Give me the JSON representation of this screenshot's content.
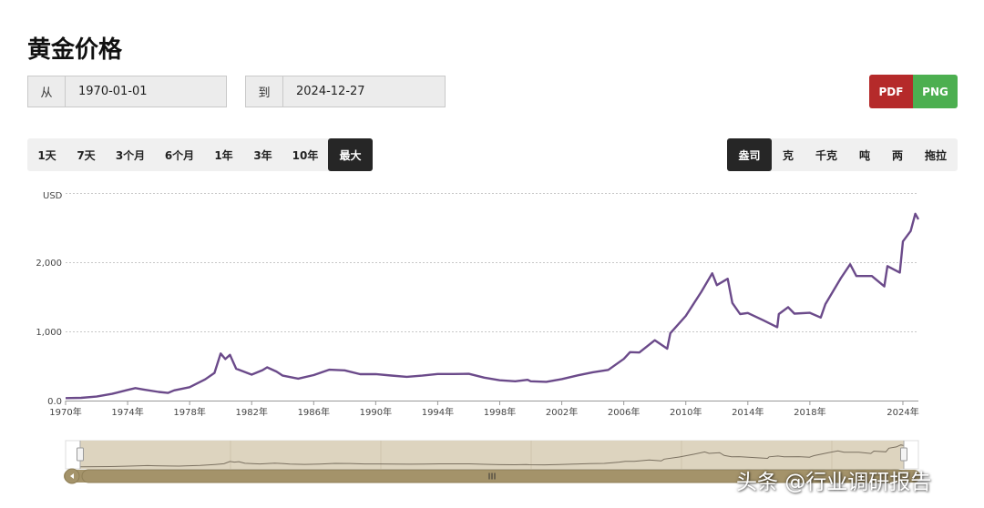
{
  "page_title": "黄金价格",
  "date_range": {
    "from_label": "从",
    "from_value": "1970-01-01",
    "to_label": "到",
    "to_value": "2024-12-27"
  },
  "export": {
    "pdf_label": "PDF",
    "png_label": "PNG",
    "pdf_color": "#b52a2a",
    "png_color": "#4caf50"
  },
  "range_buttons": [
    {
      "label": "1天",
      "active": false
    },
    {
      "label": "7天",
      "active": false
    },
    {
      "label": "3个月",
      "active": false
    },
    {
      "label": "6个月",
      "active": false
    },
    {
      "label": "1年",
      "active": false
    },
    {
      "label": "3年",
      "active": false
    },
    {
      "label": "10年",
      "active": false
    },
    {
      "label": "最大",
      "active": true
    }
  ],
  "unit_buttons": [
    {
      "label": "盎司",
      "active": true
    },
    {
      "label": "克",
      "active": false
    },
    {
      "label": "千克",
      "active": false
    },
    {
      "label": "吨",
      "active": false
    },
    {
      "label": "两",
      "active": false
    },
    {
      "label": "拖拉",
      "active": false
    }
  ],
  "watermark": "头条 @行业调研报告",
  "chart_data": {
    "type": "line",
    "title": "",
    "xlabel": "",
    "ylabel": "USD",
    "ylim": [
      0,
      3000
    ],
    "xlim": [
      1970,
      2025
    ],
    "y_ticks": [
      {
        "value": 0,
        "label": "0.0"
      },
      {
        "value": 1000,
        "label": "1,000"
      },
      {
        "value": 2000,
        "label": "2,000"
      }
    ],
    "x_ticks": [
      {
        "value": 1970,
        "label": "1970年"
      },
      {
        "value": 1974,
        "label": "1974年"
      },
      {
        "value": 1978,
        "label": "1978年"
      },
      {
        "value": 1982,
        "label": "1982年"
      },
      {
        "value": 1986,
        "label": "1986年"
      },
      {
        "value": 1990,
        "label": "1990年"
      },
      {
        "value": 1994,
        "label": "1994年"
      },
      {
        "value": 1998,
        "label": "1998年"
      },
      {
        "value": 2002,
        "label": "2002年"
      },
      {
        "value": 2006,
        "label": "2006年"
      },
      {
        "value": 2010,
        "label": "2010年"
      },
      {
        "value": 2014,
        "label": "2014年"
      },
      {
        "value": 2018,
        "label": "2018年"
      },
      {
        "value": 2024,
        "label": "2024年"
      }
    ],
    "grid": true,
    "line_color": "#6b4a8a",
    "navigator": true,
    "series": [
      {
        "points": [
          [
            1970,
            35
          ],
          [
            1971,
            40
          ],
          [
            1972,
            58
          ],
          [
            1973,
            97
          ],
          [
            1974,
            154
          ],
          [
            1974.5,
            180
          ],
          [
            1975,
            160
          ],
          [
            1976,
            125
          ],
          [
            1976.6,
            110
          ],
          [
            1977,
            148
          ],
          [
            1978,
            193
          ],
          [
            1979,
            306
          ],
          [
            1979.6,
            400
          ],
          [
            1980,
            680
          ],
          [
            1980.3,
            600
          ],
          [
            1980.6,
            660
          ],
          [
            1981,
            460
          ],
          [
            1982,
            375
          ],
          [
            1982.7,
            440
          ],
          [
            1983,
            480
          ],
          [
            1983.6,
            420
          ],
          [
            1984,
            360
          ],
          [
            1985,
            317
          ],
          [
            1986,
            368
          ],
          [
            1987,
            446
          ],
          [
            1988,
            437
          ],
          [
            1989,
            381
          ],
          [
            1990,
            383
          ],
          [
            1991,
            362
          ],
          [
            1992,
            344
          ],
          [
            1993,
            360
          ],
          [
            1994,
            384
          ],
          [
            1995,
            384
          ],
          [
            1996,
            387
          ],
          [
            1997,
            331
          ],
          [
            1998,
            294
          ],
          [
            1999,
            279
          ],
          [
            1999.8,
            300
          ],
          [
            2000,
            279
          ],
          [
            2001,
            271
          ],
          [
            2002,
            310
          ],
          [
            2003,
            363
          ],
          [
            2004,
            409
          ],
          [
            2005,
            444
          ],
          [
            2006,
            603
          ],
          [
            2006.4,
            700
          ],
          [
            2007,
            695
          ],
          [
            2008,
            872
          ],
          [
            2008.8,
            750
          ],
          [
            2009,
            972
          ],
          [
            2010,
            1224
          ],
          [
            2011,
            1571
          ],
          [
            2011.7,
            1840
          ],
          [
            2012,
            1669
          ],
          [
            2012.7,
            1760
          ],
          [
            2013,
            1411
          ],
          [
            2013.5,
            1250
          ],
          [
            2014,
            1266
          ],
          [
            2015,
            1160
          ],
          [
            2015.9,
            1060
          ],
          [
            2016,
            1250
          ],
          [
            2016.6,
            1350
          ],
          [
            2017,
            1257
          ],
          [
            2018,
            1268
          ],
          [
            2018.7,
            1200
          ],
          [
            2019,
            1393
          ],
          [
            2020,
            1770
          ],
          [
            2020.6,
            1970
          ],
          [
            2021,
            1800
          ],
          [
            2022,
            1800
          ],
          [
            2022.8,
            1650
          ],
          [
            2023,
            1943
          ],
          [
            2023.8,
            1850
          ],
          [
            2024,
            2300
          ],
          [
            2024.5,
            2450
          ],
          [
            2024.8,
            2700
          ],
          [
            2025,
            2620
          ]
        ]
      }
    ]
  }
}
